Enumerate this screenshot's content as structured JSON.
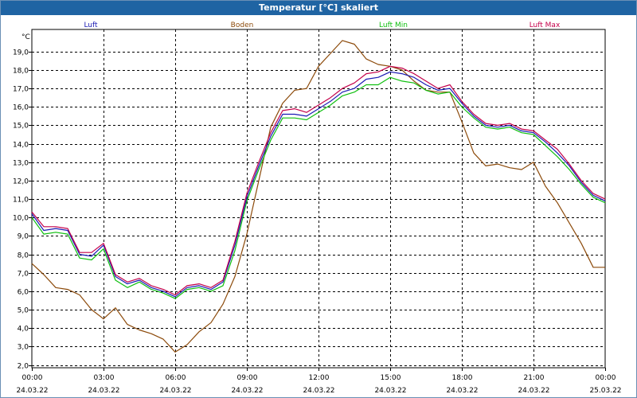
{
  "window": {
    "title": "Temperatur [°C] skaliert"
  },
  "colors": {
    "title_bar": "#1f64a3",
    "luft": "#1a1ab4",
    "boden": "#8c4a0a",
    "luft_min": "#0fbf0f",
    "luft_max": "#c4004a",
    "grid": "#000000"
  },
  "chart_data": {
    "type": "line",
    "title": "Temperatur [°C] skaliert",
    "ylabel": "°C",
    "ylim": [
      1.85,
      20.2
    ],
    "xlim_hours": [
      0,
      24
    ],
    "grid": true,
    "legend_position": "top",
    "y_ticks": [
      "19,0",
      "18,0",
      "17,0",
      "16,0",
      "15,0",
      "14,0",
      "13,0",
      "12,0",
      "11,0",
      "10,0",
      "9,0",
      "8,0",
      "7,0",
      "6,0",
      "5,0",
      "4,0",
      "3,0",
      "2,0"
    ],
    "x_ticks": [
      {
        "time": "00:00",
        "date": "24.03.22"
      },
      {
        "time": "03:00",
        "date": "24.03.22"
      },
      {
        "time": "06:00",
        "date": "24.03.22"
      },
      {
        "time": "09:00",
        "date": "24.03.22"
      },
      {
        "time": "12:00",
        "date": "24.03.22"
      },
      {
        "time": "15:00",
        "date": "24.03.22"
      },
      {
        "time": "18:00",
        "date": "24.03.22"
      },
      {
        "time": "21:00",
        "date": "24.03.22"
      },
      {
        "time": "00:00",
        "date": "25.03.22"
      }
    ],
    "x_hours": [
      0,
      0.5,
      1,
      1.5,
      2,
      2.5,
      3,
      3.5,
      4,
      4.5,
      5,
      5.5,
      6,
      6.5,
      7,
      7.5,
      8,
      8.5,
      9,
      9.5,
      10,
      10.5,
      11,
      11.5,
      12,
      12.5,
      13,
      13.5,
      14,
      14.5,
      15,
      15.5,
      16,
      16.5,
      17,
      17.5,
      18,
      18.5,
      19,
      19.5,
      20,
      20.5,
      21,
      21.5,
      22,
      22.5,
      23,
      23.5,
      24
    ],
    "series": [
      {
        "name": "Luft",
        "color": "#1a1ab4",
        "values": [
          10.2,
          9.3,
          9.4,
          9.3,
          8.0,
          7.9,
          8.5,
          6.8,
          6.4,
          6.6,
          6.2,
          6.0,
          5.7,
          6.2,
          6.3,
          6.1,
          6.5,
          8.5,
          11.1,
          12.8,
          14.4,
          15.6,
          15.6,
          15.5,
          15.9,
          16.3,
          16.8,
          17.0,
          17.5,
          17.6,
          17.9,
          17.8,
          17.6,
          17.2,
          16.9,
          17.0,
          16.2,
          15.5,
          15.0,
          14.9,
          15.0,
          14.7,
          14.6,
          14.1,
          13.5,
          12.8,
          11.9,
          11.2,
          10.9
        ]
      },
      {
        "name": "Boden",
        "color": "#8c4a0a",
        "values": [
          7.5,
          6.9,
          6.2,
          6.1,
          5.8,
          5.0,
          4.5,
          5.1,
          4.2,
          3.9,
          3.7,
          3.4,
          2.7,
          3.1,
          3.8,
          4.3,
          5.3,
          6.8,
          9.1,
          12.0,
          14.9,
          16.2,
          16.9,
          17.0,
          18.2,
          18.9,
          19.6,
          19.4,
          18.6,
          18.3,
          18.2,
          18.0,
          17.4,
          16.9,
          16.8,
          16.8,
          15.2,
          13.5,
          12.8,
          12.9,
          12.7,
          12.6,
          13.0,
          11.7,
          10.8,
          9.7,
          8.6,
          7.3,
          7.3
        ]
      },
      {
        "name": "Luft Min",
        "color": "#0fbf0f",
        "values": [
          10.0,
          9.1,
          9.2,
          9.1,
          7.8,
          7.7,
          8.3,
          6.6,
          6.2,
          6.5,
          6.1,
          5.9,
          5.6,
          6.1,
          6.2,
          6.0,
          6.3,
          8.2,
          10.9,
          12.6,
          14.2,
          15.4,
          15.4,
          15.3,
          15.7,
          16.1,
          16.6,
          16.8,
          17.2,
          17.2,
          17.6,
          17.4,
          17.3,
          16.9,
          16.7,
          16.8,
          16.0,
          15.4,
          14.9,
          14.8,
          14.9,
          14.6,
          14.5,
          13.9,
          13.3,
          12.6,
          11.8,
          11.1,
          10.8
        ]
      },
      {
        "name": "Luft Max",
        "color": "#c4004a",
        "values": [
          10.3,
          9.5,
          9.5,
          9.4,
          8.1,
          8.1,
          8.6,
          6.9,
          6.5,
          6.7,
          6.3,
          6.1,
          5.8,
          6.3,
          6.4,
          6.2,
          6.6,
          8.7,
          11.3,
          13.0,
          14.6,
          15.8,
          15.9,
          15.7,
          16.1,
          16.5,
          17.0,
          17.3,
          17.8,
          17.9,
          18.2,
          18.1,
          17.8,
          17.4,
          17.0,
          17.2,
          16.3,
          15.6,
          15.1,
          15.0,
          15.1,
          14.8,
          14.7,
          14.2,
          13.7,
          12.9,
          12.0,
          11.3,
          11.0
        ]
      }
    ]
  }
}
